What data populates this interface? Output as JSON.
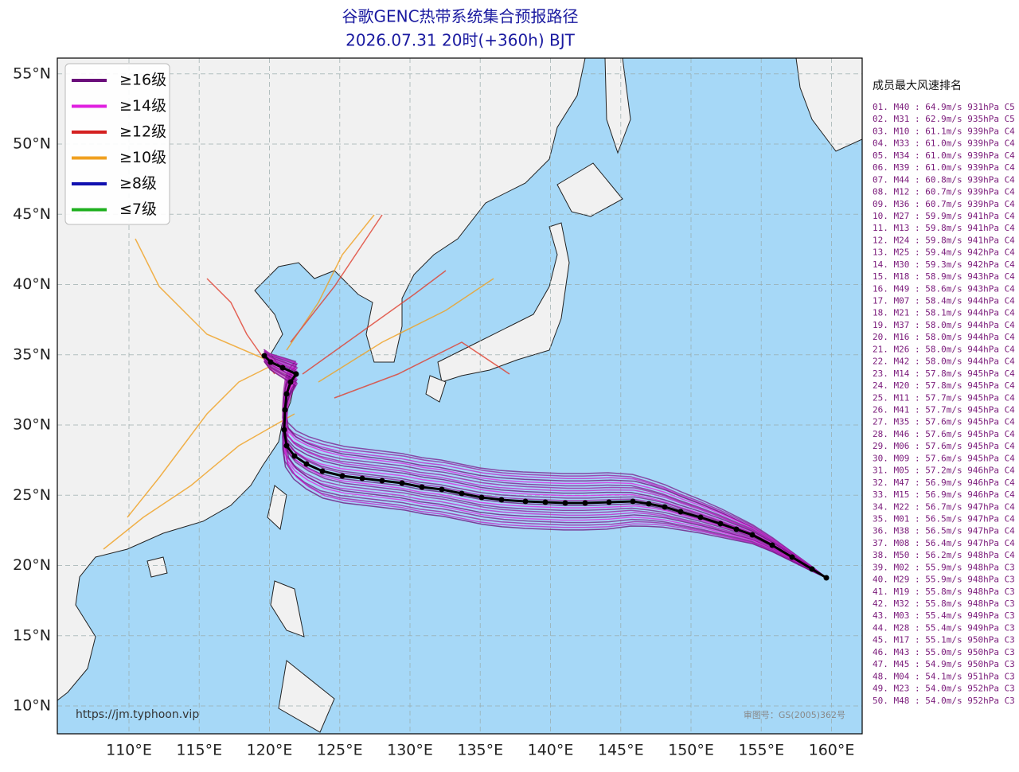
{
  "header": {
    "title": "谷歌GENC热带系统集合预报路径",
    "subtitle": "2026.07.31 20时(+360h) BJT"
  },
  "map": {
    "lat_ticks": [
      {
        "value": 55,
        "label": "55°N"
      },
      {
        "value": 50,
        "label": "50°N"
      },
      {
        "value": 45,
        "label": "45°N"
      },
      {
        "value": 40,
        "label": "40°N"
      },
      {
        "value": 35,
        "label": "35°N"
      },
      {
        "value": 30,
        "label": "30°N"
      },
      {
        "value": 25,
        "label": "25°N"
      },
      {
        "value": 20,
        "label": "20°N"
      },
      {
        "value": 15,
        "label": "15°N"
      },
      {
        "value": 10,
        "label": "10°N"
      }
    ],
    "lon_ticks": [
      {
        "value": 110,
        "label": "110°E"
      },
      {
        "value": 115,
        "label": "115°E"
      },
      {
        "value": 120,
        "label": "120°E"
      },
      {
        "value": 125,
        "label": "125°E"
      },
      {
        "value": 130,
        "label": "130°E"
      },
      {
        "value": 135,
        "label": "135°E"
      },
      {
        "value": 140,
        "label": "140°E"
      },
      {
        "value": 145,
        "label": "145°E"
      },
      {
        "value": 150,
        "label": "150°E"
      },
      {
        "value": 155,
        "label": "155°E"
      },
      {
        "value": 160,
        "label": "160°E"
      }
    ],
    "source_url": "https://jm.typhoon.vip",
    "approval_number": "审图号：GS(2005)362号"
  },
  "legend": [
    {
      "label": "≥16级",
      "color": "#6a0d7a"
    },
    {
      "label": "≥14级",
      "color": "#e020e0"
    },
    {
      "label": "≥12级",
      "color": "#d42020"
    },
    {
      "label": "≥10级",
      "color": "#f0a020"
    },
    {
      "label": "≥8级",
      "color": "#1010b0"
    },
    {
      "label": "≤7级",
      "color": "#20b020"
    }
  ],
  "ranking": {
    "title": "成员最大风速排名",
    "entries": [
      "01. M40 : 64.9m/s 931hPa C5",
      "02. M31 : 62.9m/s 935hPa C5",
      "03. M10 : 61.1m/s 939hPa C4",
      "04. M33 : 61.0m/s 939hPa C4",
      "05. M34 : 61.0m/s 939hPa C4",
      "06. M39 : 61.0m/s 939hPa C4",
      "07. M44 : 60.8m/s 939hPa C4",
      "08. M12 : 60.7m/s 939hPa C4",
      "09. M36 : 60.7m/s 939hPa C4",
      "10. M27 : 59.9m/s 941hPa C4",
      "11. M13 : 59.8m/s 941hPa C4",
      "12. M24 : 59.8m/s 941hPa C4",
      "13. M25 : 59.4m/s 942hPa C4",
      "14. M30 : 59.3m/s 942hPa C4",
      "15. M18 : 58.9m/s 943hPa C4",
      "16. M49 : 58.6m/s 943hPa C4",
      "17. M07 : 58.4m/s 944hPa C4",
      "18. M21 : 58.1m/s 944hPa C4",
      "19. M37 : 58.0m/s 944hPa C4",
      "20. M16 : 58.0m/s 944hPa C4",
      "21. M26 : 58.0m/s 944hPa C4",
      "22. M42 : 58.0m/s 944hPa C4",
      "23. M14 : 57.8m/s 945hPa C4",
      "24. M20 : 57.8m/s 945hPa C4",
      "25. M11 : 57.7m/s 945hPa C4",
      "26. M41 : 57.7m/s 945hPa C4",
      "27. M35 : 57.6m/s 945hPa C4",
      "28. M46 : 57.6m/s 945hPa C4",
      "29. M06 : 57.6m/s 945hPa C4",
      "30. M09 : 57.6m/s 945hPa C4",
      "31. M05 : 57.2m/s 946hPa C4",
      "32. M47 : 56.9m/s 946hPa C4",
      "33. M15 : 56.9m/s 946hPa C4",
      "34. M22 : 56.7m/s 947hPa C4",
      "35. M01 : 56.5m/s 947hPa C4",
      "36. M38 : 56.5m/s 947hPa C4",
      "37. M08 : 56.4m/s 947hPa C4",
      "38. M50 : 56.2m/s 948hPa C4",
      "39. M02 : 55.9m/s 948hPa C3",
      "40. M29 : 55.9m/s 948hPa C3",
      "41. M19 : 55.8m/s 948hPa C3",
      "42. M32 : 55.8m/s 948hPa C3",
      "43. M03 : 55.4m/s 949hPa C3",
      "44. M28 : 55.4m/s 949hPa C3",
      "45. M17 : 55.1m/s 950hPa C3",
      "46. M43 : 55.0m/s 950hPa C3",
      "47. M45 : 54.9m/s 950hPa C3",
      "48. M04 : 54.1m/s 951hPa C3",
      "49. M23 : 54.0m/s 952hPa C3",
      "50. M48 : 54.0m/s 952hPa C3"
    ]
  }
}
